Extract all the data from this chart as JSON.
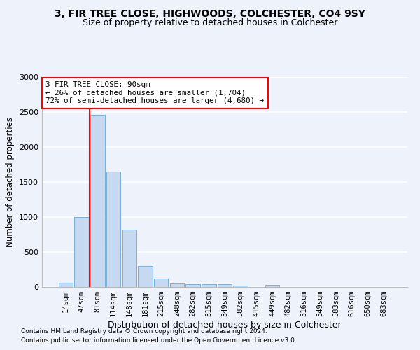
{
  "title1": "3, FIR TREE CLOSE, HIGHWOODS, COLCHESTER, CO4 9SY",
  "title2": "Size of property relative to detached houses in Colchester",
  "xlabel": "Distribution of detached houses by size in Colchester",
  "ylabel": "Number of detached properties",
  "categories": [
    "14sqm",
    "47sqm",
    "81sqm",
    "114sqm",
    "148sqm",
    "181sqm",
    "215sqm",
    "248sqm",
    "282sqm",
    "315sqm",
    "349sqm",
    "382sqm",
    "415sqm",
    "449sqm",
    "482sqm",
    "516sqm",
    "549sqm",
    "583sqm",
    "616sqm",
    "650sqm",
    "683sqm"
  ],
  "values": [
    60,
    1000,
    2460,
    1650,
    820,
    300,
    120,
    55,
    45,
    45,
    45,
    20,
    0,
    30,
    0,
    0,
    0,
    0,
    0,
    0,
    0
  ],
  "bar_color": "#c6d9f0",
  "bar_edge_color": "#7bafd4",
  "annotation_text_line1": "3 FIR TREE CLOSE: 90sqm",
  "annotation_text_line2": "← 26% of detached houses are smaller (1,704)",
  "annotation_text_line3": "72% of semi-detached houses are larger (4,680) →",
  "vline_x": 1.5,
  "ylim": [
    0,
    3000
  ],
  "yticks": [
    0,
    500,
    1000,
    1500,
    2000,
    2500,
    3000
  ],
  "footnote1": "Contains HM Land Registry data © Crown copyright and database right 2024.",
  "footnote2": "Contains public sector information licensed under the Open Government Licence v3.0.",
  "bg_color": "#eef2fb",
  "grid_color": "#ffffff",
  "title1_fontsize": 10,
  "title2_fontsize": 9
}
